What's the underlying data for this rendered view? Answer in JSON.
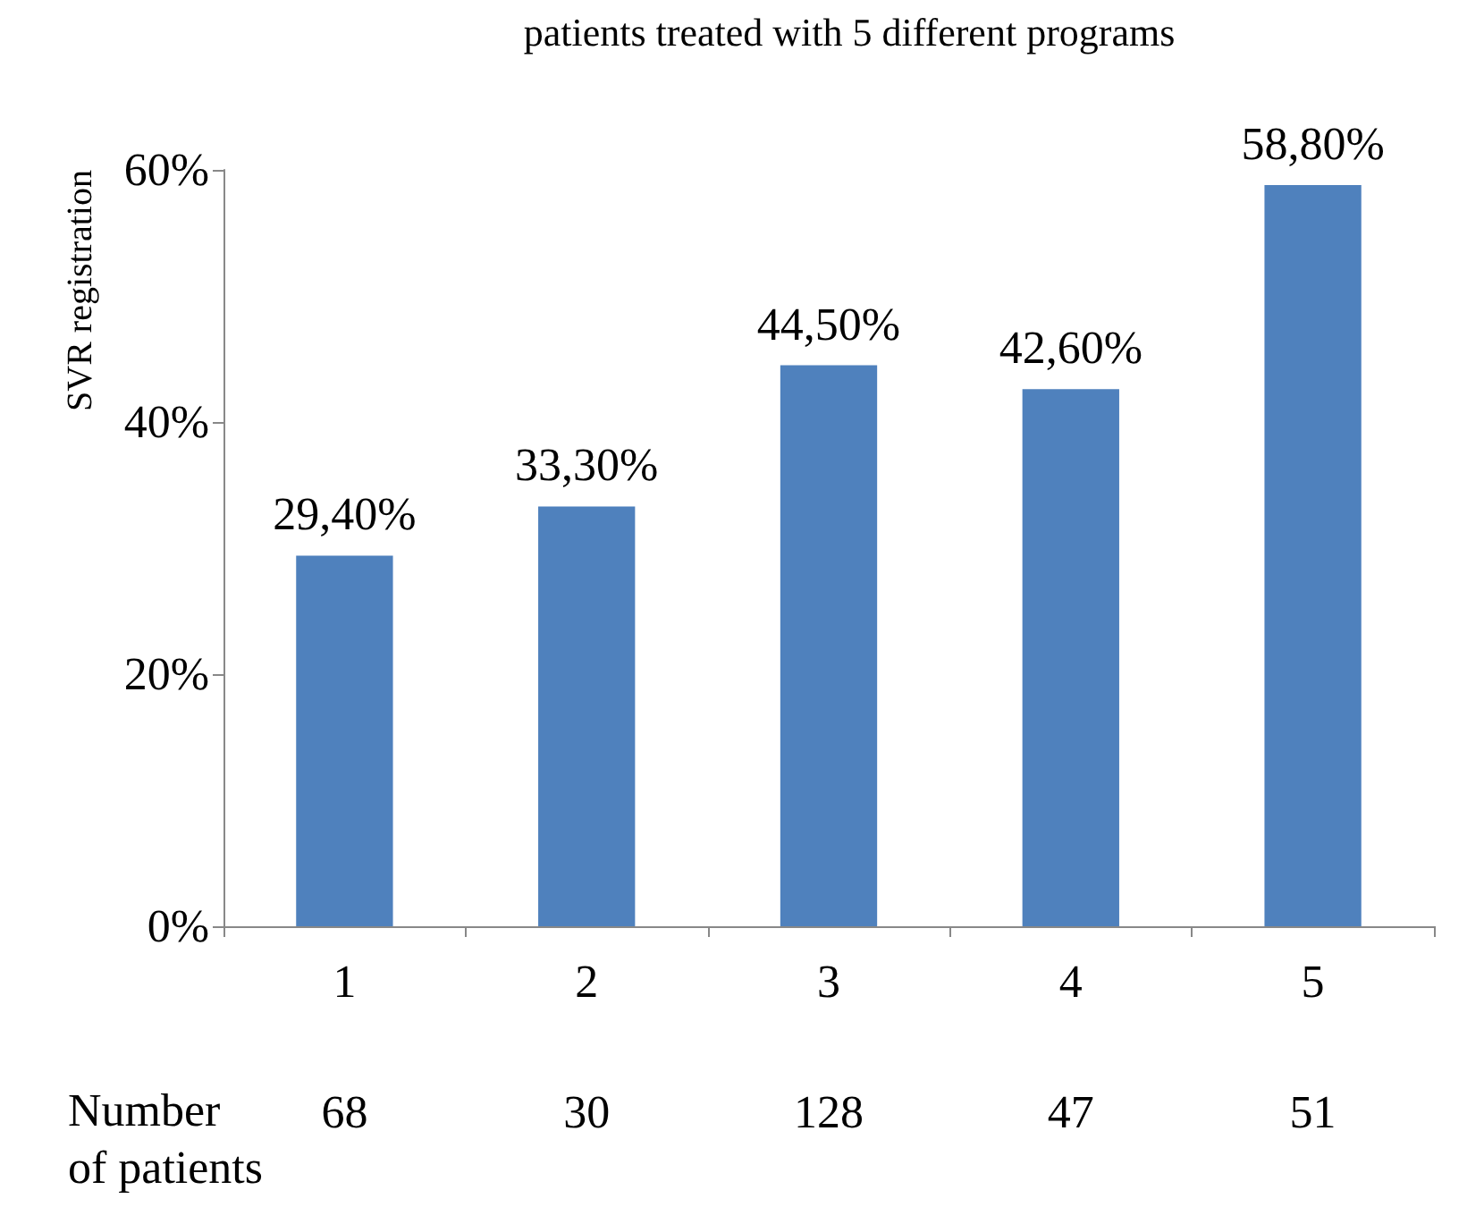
{
  "chart_data": {
    "type": "bar",
    "title": "patients treated with 5 different programs",
    "ylabel": "SVR registration",
    "categories": [
      "1",
      "2",
      "3",
      "4",
      "5"
    ],
    "series": [
      {
        "color": "#4f81bd",
        "values": [
          29.4,
          33.3,
          44.5,
          42.6,
          58.8
        ],
        "value_labels": [
          "29,40%",
          "33,30%",
          "44,50%",
          "42,60%",
          "58,80%"
        ]
      }
    ],
    "ylim": [
      0,
      60
    ],
    "yticks": [
      {
        "value": 0,
        "label": "0%"
      },
      {
        "value": 20,
        "label": "20%"
      },
      {
        "value": 40,
        "label": "40%"
      },
      {
        "value": 60,
        "label": "60%"
      }
    ],
    "grid": false,
    "annotations": [
      "Number\nof patients",
      "68",
      "30",
      "128",
      "47",
      "51"
    ]
  }
}
